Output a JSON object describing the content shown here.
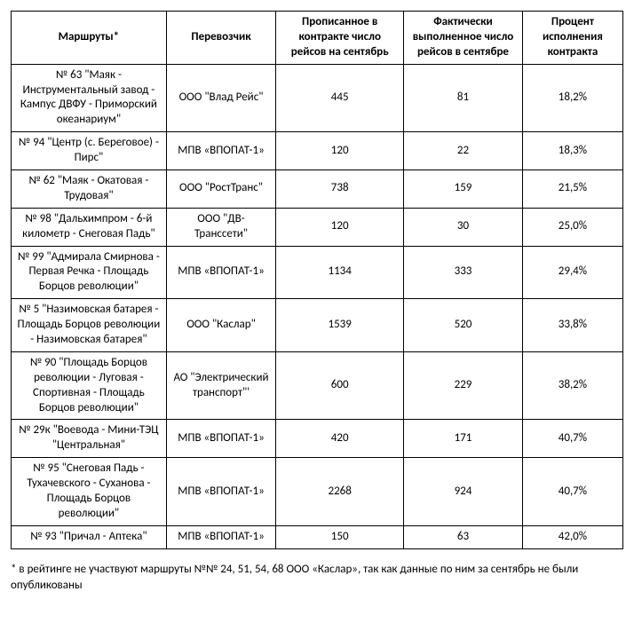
{
  "table": {
    "columns": [
      "Маршруты*",
      "Перевозчик",
      "Прописанное в контракте число рейсов на сентябрь",
      "Фактически выполненное число рейсов в сентябре",
      "Процент исполнения контракта"
    ],
    "rows": [
      [
        "№ 63 \"Маяк - Инструментальный завод - Кампус ДВФУ - Приморский океанариум\"",
        "ООО \"Влад Рейс\"",
        "445",
        "81",
        "18,2%"
      ],
      [
        "№ 94 \"Центр (с. Береговое) - Пирс\"",
        "МПВ «ВПОПАТ-1»",
        "120",
        "22",
        "18,3%"
      ],
      [
        "№ 62 \"Маяк - Окатовая - Трудовая\"",
        "ООО \"РостТранс\"",
        "738",
        "159",
        "21,5%"
      ],
      [
        "№ 98 \"Дальхимпром - 6-й километр - Снеговая Падь\"",
        "ООО \"ДВ-Транссети\"",
        "120",
        "30",
        "25,0%"
      ],
      [
        "№ 99 \"Адмирала Смирнова - Первая Речка - Площадь Борцов революции\"",
        "МПВ «ВПОПАТ-1»",
        "1134",
        "333",
        "29,4%"
      ],
      [
        "№ 5 \"Назимовская батарея - Площадь Борцов революции - Назимовская батарея\"",
        "ООО \"Каслар\"",
        "1539",
        "520",
        "33,8%"
      ],
      [
        "№ 90 \"Площадь Борцов революции - Луговая - Спортивная - Площадь Борцов революции\"",
        "АО \"Электрический транспорт\"'",
        "600",
        "229",
        "38,2%"
      ],
      [
        "№ 29к \"Воевода - Мини-ТЭЦ \"Центральная\"",
        "МПВ «ВПОПАТ-1»",
        "420",
        "171",
        "40,7%"
      ],
      [
        "№ 95 \"Снеговая Падь - Тухачевского - Суханова - Площадь Борцов революции\"",
        "МПВ «ВПОПАТ-1»",
        "2268",
        "924",
        "40,7%"
      ],
      [
        "№ 93 \"Причал - Аптека\"",
        "МПВ «ВПОПАТ-1»",
        "150",
        "63",
        "42,0%"
      ]
    ]
  },
  "footnote": "* в рейтинге не участвуют маршруты №№ 24, 51, 54, 68 ООО «Каслар», так как данные по ним за сентябрь не были опубликованы"
}
